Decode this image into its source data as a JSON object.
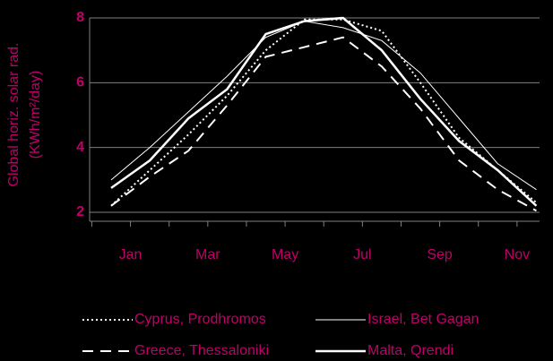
{
  "chart_data": {
    "type": "line",
    "ylabel": [
      "Global horiz. solar rad.",
      "(KWh/m²/day)"
    ],
    "categories": [
      "Jan",
      null,
      "Mar",
      null,
      "May",
      null,
      "Jul",
      null,
      "Sep",
      null,
      "Nov",
      null
    ],
    "ylim": [
      2,
      8
    ],
    "yticks": [
      2,
      4,
      6,
      8
    ],
    "grid": true,
    "series": [
      {
        "name": "Cyprus, Prodhromos",
        "color": "#ffffff",
        "dash": "dotted",
        "width": 2,
        "values": [
          2.2,
          3.3,
          4.4,
          5.6,
          7.0,
          7.95,
          7.95,
          7.6,
          6.0,
          4.3,
          3.3,
          2.3
        ]
      },
      {
        "name": "Israel, Bet Gagan",
        "color": "#ffffff",
        "dash": "solid",
        "width": 1,
        "values": [
          3.0,
          4.0,
          5.1,
          6.2,
          7.4,
          7.9,
          7.7,
          7.3,
          6.3,
          4.9,
          3.5,
          2.7
        ]
      },
      {
        "name": "Greece, Thessaloniki",
        "color": "#ffffff",
        "dash": "dashed",
        "width": 2,
        "values": [
          2.2,
          3.1,
          3.9,
          5.3,
          6.8,
          7.1,
          7.4,
          6.5,
          5.2,
          3.6,
          2.7,
          2.05
        ]
      },
      {
        "name": "Malta, Qrendi",
        "color": "#ffffff",
        "dash": "solid",
        "width": 2.5,
        "values": [
          2.75,
          3.6,
          4.9,
          5.8,
          7.5,
          7.9,
          8.0,
          7.0,
          5.5,
          4.2,
          3.3,
          2.2
        ]
      }
    ]
  }
}
